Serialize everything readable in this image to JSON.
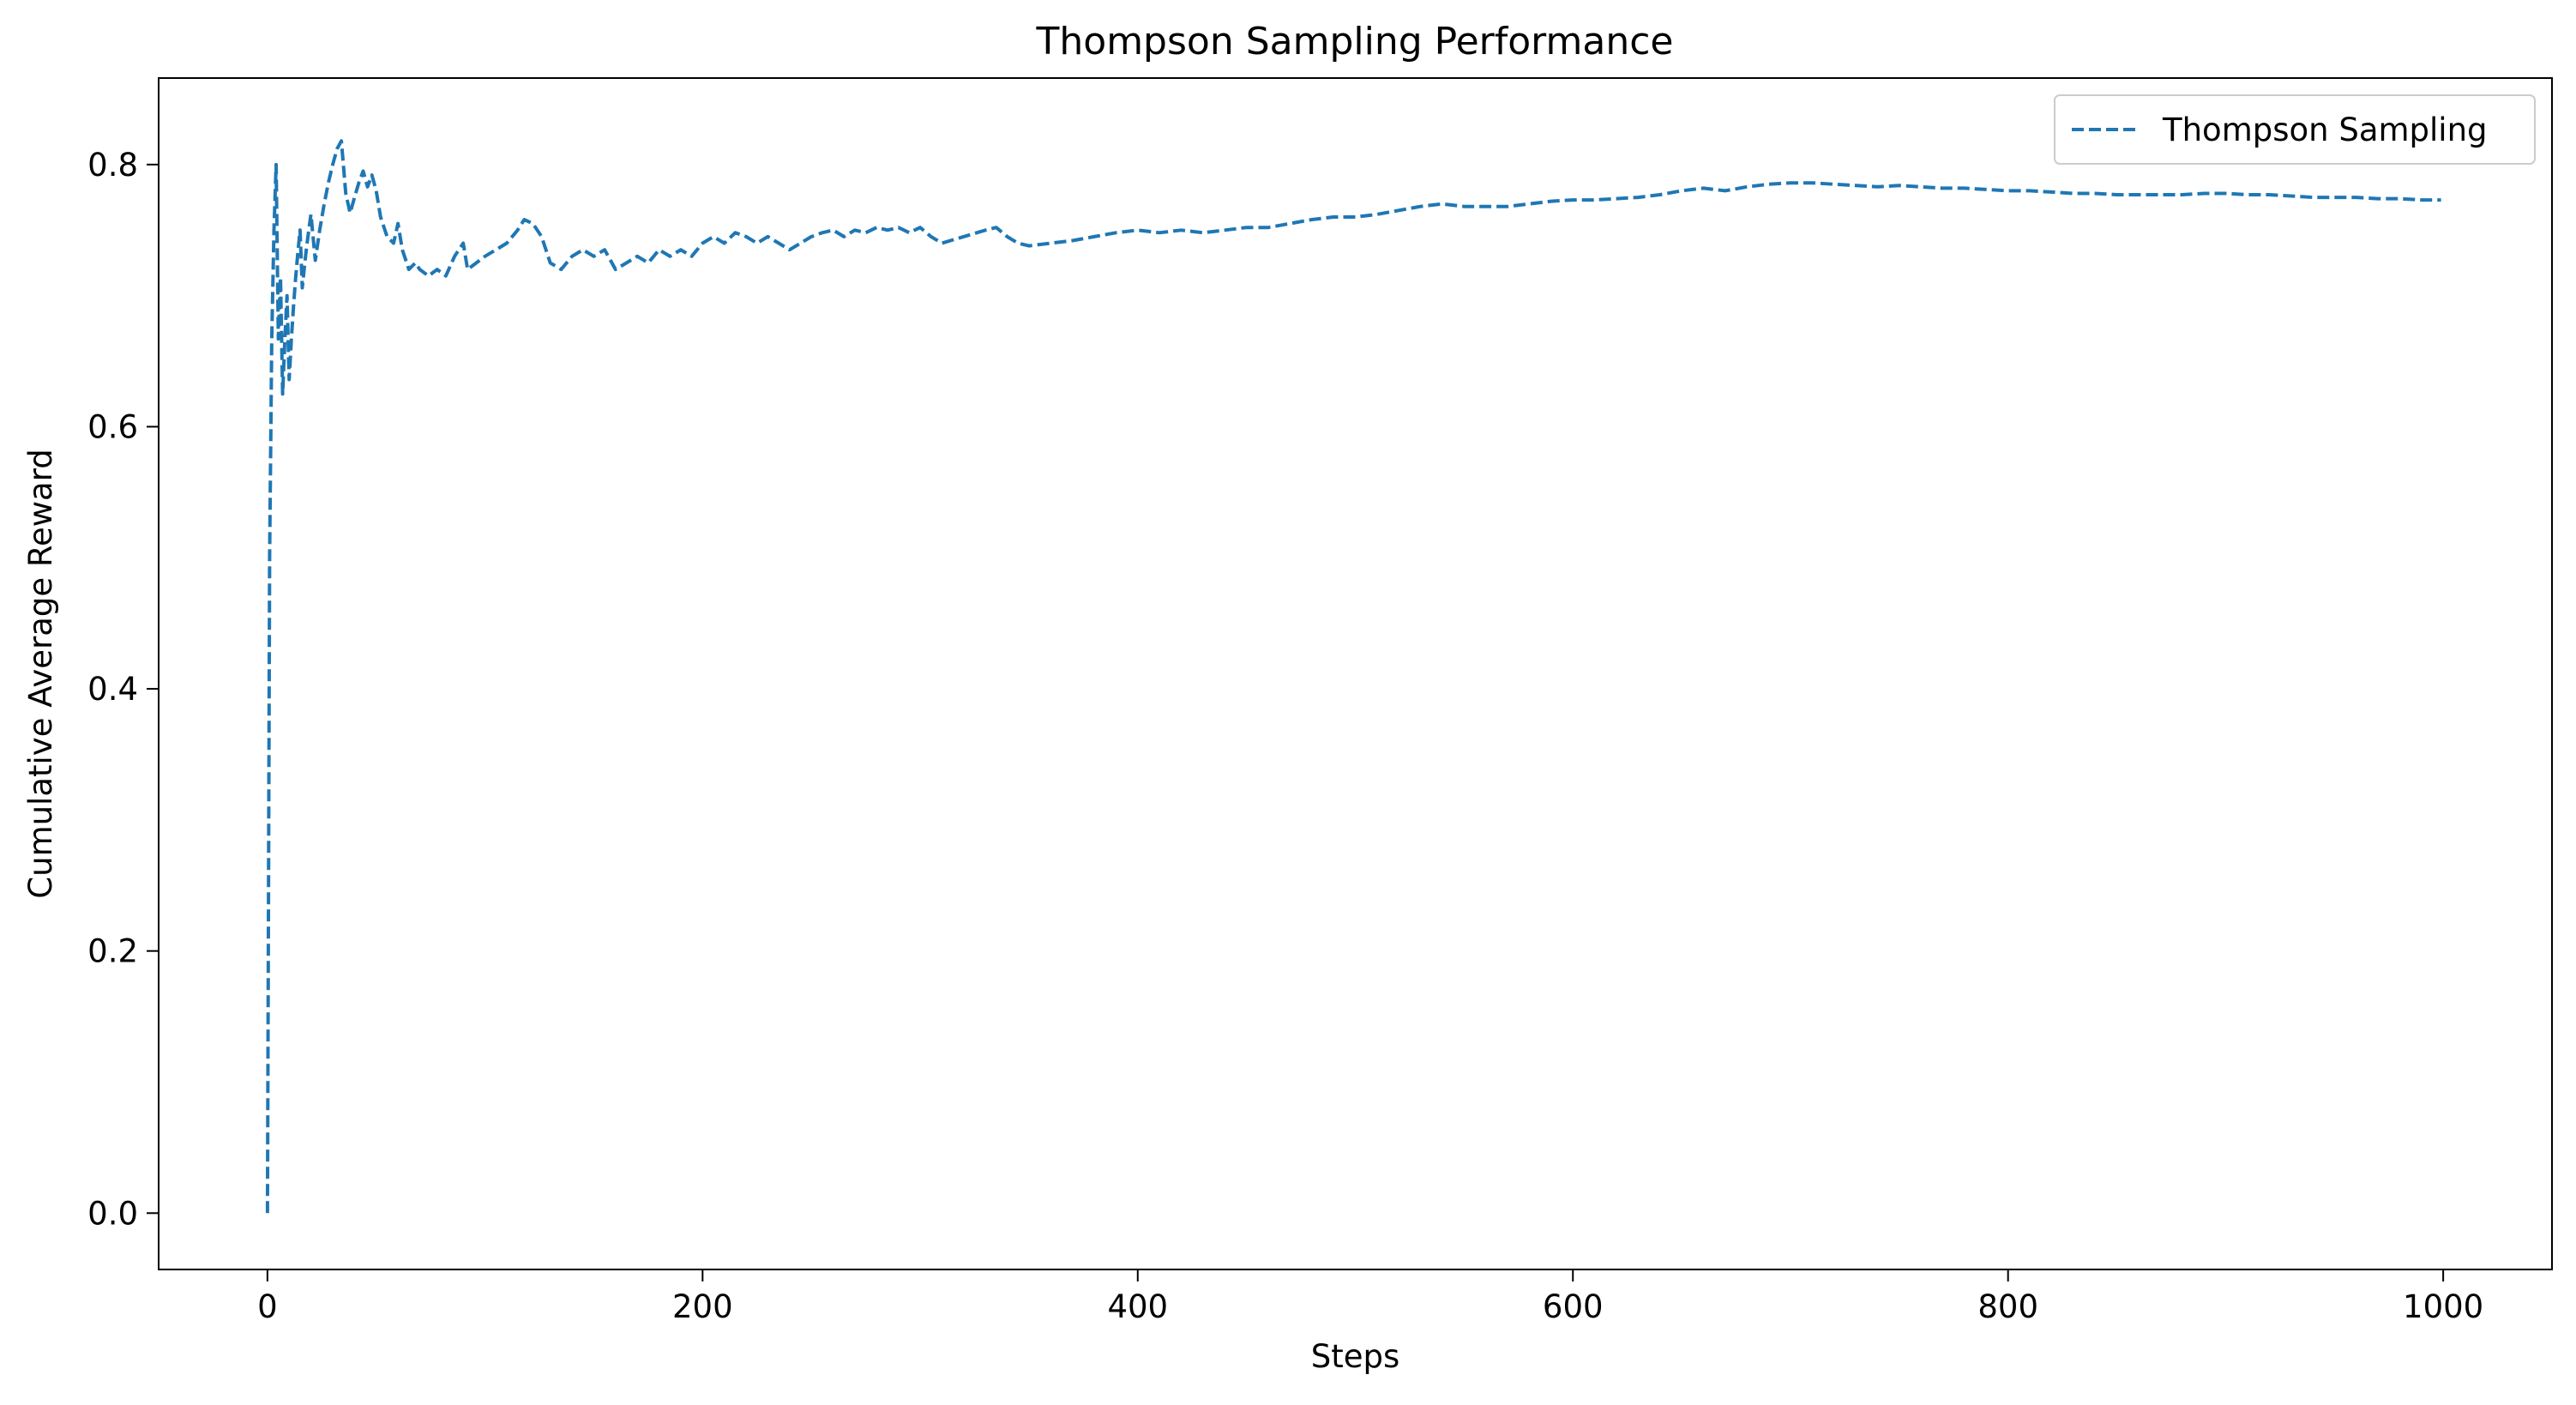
{
  "chart_data": {
    "type": "line",
    "title": "Thompson Sampling Performance",
    "xlabel": "Steps",
    "ylabel": "Cumulative Average Reward",
    "xlim": [
      -50,
      1050
    ],
    "ylim": [
      -0.043,
      0.866
    ],
    "xticks": [
      0,
      200,
      400,
      600,
      800,
      1000
    ],
    "xtick_labels": [
      "0",
      "200",
      "400",
      "600",
      "800",
      "1000"
    ],
    "yticks": [
      0.0,
      0.2,
      0.4,
      0.6,
      0.8
    ],
    "ytick_labels": [
      "0.0",
      "0.2",
      "0.4",
      "0.6",
      "0.8"
    ],
    "grid": false,
    "legend_position": "top-right",
    "series": [
      {
        "name": "Thompson Sampling",
        "color": "#1f77b4",
        "line_style": "dashed",
        "points": [
          [
            0,
            0.0
          ],
          [
            1,
            0.5
          ],
          [
            2,
            0.667
          ],
          [
            3,
            0.75
          ],
          [
            4,
            0.8
          ],
          [
            5,
            0.667
          ],
          [
            6,
            0.714
          ],
          [
            7,
            0.625
          ],
          [
            8,
            0.667
          ],
          [
            9,
            0.7
          ],
          [
            10,
            0.636
          ],
          [
            11,
            0.667
          ],
          [
            12,
            0.692
          ],
          [
            13,
            0.714
          ],
          [
            14,
            0.733
          ],
          [
            15,
            0.75
          ],
          [
            16,
            0.706
          ],
          [
            17,
            0.722
          ],
          [
            18,
            0.737
          ],
          [
            19,
            0.75
          ],
          [
            20,
            0.762
          ],
          [
            22,
            0.727
          ],
          [
            24,
            0.75
          ],
          [
            26,
            0.769
          ],
          [
            28,
            0.786
          ],
          [
            30,
            0.8
          ],
          [
            32,
            0.812
          ],
          [
            34,
            0.818
          ],
          [
            36,
            0.778
          ],
          [
            38,
            0.763
          ],
          [
            40,
            0.775
          ],
          [
            42,
            0.786
          ],
          [
            44,
            0.795
          ],
          [
            46,
            0.783
          ],
          [
            48,
            0.792
          ],
          [
            50,
            0.78
          ],
          [
            52,
            0.76
          ],
          [
            55,
            0.745
          ],
          [
            58,
            0.74
          ],
          [
            60,
            0.755
          ],
          [
            62,
            0.735
          ],
          [
            65,
            0.72
          ],
          [
            68,
            0.725
          ],
          [
            70,
            0.72
          ],
          [
            74,
            0.715
          ],
          [
            78,
            0.72
          ],
          [
            82,
            0.715
          ],
          [
            86,
            0.73
          ],
          [
            90,
            0.74
          ],
          [
            92,
            0.72
          ],
          [
            96,
            0.725
          ],
          [
            100,
            0.73
          ],
          [
            105,
            0.735
          ],
          [
            110,
            0.74
          ],
          [
            115,
            0.75
          ],
          [
            118,
            0.758
          ],
          [
            122,
            0.755
          ],
          [
            126,
            0.745
          ],
          [
            130,
            0.725
          ],
          [
            135,
            0.72
          ],
          [
            140,
            0.73
          ],
          [
            145,
            0.735
          ],
          [
            150,
            0.73
          ],
          [
            155,
            0.735
          ],
          [
            160,
            0.72
          ],
          [
            165,
            0.725
          ],
          [
            170,
            0.73
          ],
          [
            175,
            0.725
          ],
          [
            180,
            0.735
          ],
          [
            185,
            0.73
          ],
          [
            190,
            0.735
          ],
          [
            195,
            0.73
          ],
          [
            200,
            0.74
          ],
          [
            205,
            0.745
          ],
          [
            210,
            0.74
          ],
          [
            215,
            0.748
          ],
          [
            220,
            0.745
          ],
          [
            225,
            0.74
          ],
          [
            230,
            0.745
          ],
          [
            235,
            0.74
          ],
          [
            240,
            0.735
          ],
          [
            245,
            0.74
          ],
          [
            250,
            0.745
          ],
          [
            255,
            0.748
          ],
          [
            260,
            0.75
          ],
          [
            265,
            0.745
          ],
          [
            270,
            0.75
          ],
          [
            275,
            0.748
          ],
          [
            280,
            0.752
          ],
          [
            285,
            0.75
          ],
          [
            290,
            0.752
          ],
          [
            295,
            0.748
          ],
          [
            300,
            0.752
          ],
          [
            305,
            0.745
          ],
          [
            310,
            0.74
          ],
          [
            320,
            0.745
          ],
          [
            330,
            0.75
          ],
          [
            335,
            0.752
          ],
          [
            340,
            0.745
          ],
          [
            345,
            0.74
          ],
          [
            350,
            0.738
          ],
          [
            360,
            0.74
          ],
          [
            370,
            0.742
          ],
          [
            380,
            0.745
          ],
          [
            390,
            0.748
          ],
          [
            400,
            0.75
          ],
          [
            410,
            0.748
          ],
          [
            420,
            0.75
          ],
          [
            430,
            0.748
          ],
          [
            440,
            0.75
          ],
          [
            450,
            0.752
          ],
          [
            460,
            0.752
          ],
          [
            470,
            0.755
          ],
          [
            480,
            0.758
          ],
          [
            490,
            0.76
          ],
          [
            500,
            0.76
          ],
          [
            510,
            0.762
          ],
          [
            520,
            0.765
          ],
          [
            530,
            0.768
          ],
          [
            540,
            0.77
          ],
          [
            550,
            0.768
          ],
          [
            560,
            0.768
          ],
          [
            570,
            0.768
          ],
          [
            580,
            0.77
          ],
          [
            590,
            0.772
          ],
          [
            600,
            0.773
          ],
          [
            610,
            0.773
          ],
          [
            620,
            0.774
          ],
          [
            630,
            0.775
          ],
          [
            640,
            0.777
          ],
          [
            650,
            0.78
          ],
          [
            660,
            0.782
          ],
          [
            670,
            0.78
          ],
          [
            680,
            0.783
          ],
          [
            690,
            0.785
          ],
          [
            700,
            0.786
          ],
          [
            710,
            0.786
          ],
          [
            720,
            0.785
          ],
          [
            730,
            0.784
          ],
          [
            740,
            0.783
          ],
          [
            750,
            0.784
          ],
          [
            760,
            0.783
          ],
          [
            770,
            0.782
          ],
          [
            780,
            0.782
          ],
          [
            790,
            0.781
          ],
          [
            800,
            0.78
          ],
          [
            810,
            0.78
          ],
          [
            820,
            0.779
          ],
          [
            830,
            0.778
          ],
          [
            840,
            0.778
          ],
          [
            850,
            0.777
          ],
          [
            860,
            0.777
          ],
          [
            870,
            0.777
          ],
          [
            880,
            0.777
          ],
          [
            890,
            0.778
          ],
          [
            900,
            0.778
          ],
          [
            910,
            0.777
          ],
          [
            920,
            0.777
          ],
          [
            930,
            0.776
          ],
          [
            940,
            0.775
          ],
          [
            950,
            0.775
          ],
          [
            960,
            0.775
          ],
          [
            970,
            0.774
          ],
          [
            980,
            0.774
          ],
          [
            990,
            0.773
          ],
          [
            999,
            0.773
          ]
        ]
      }
    ]
  }
}
